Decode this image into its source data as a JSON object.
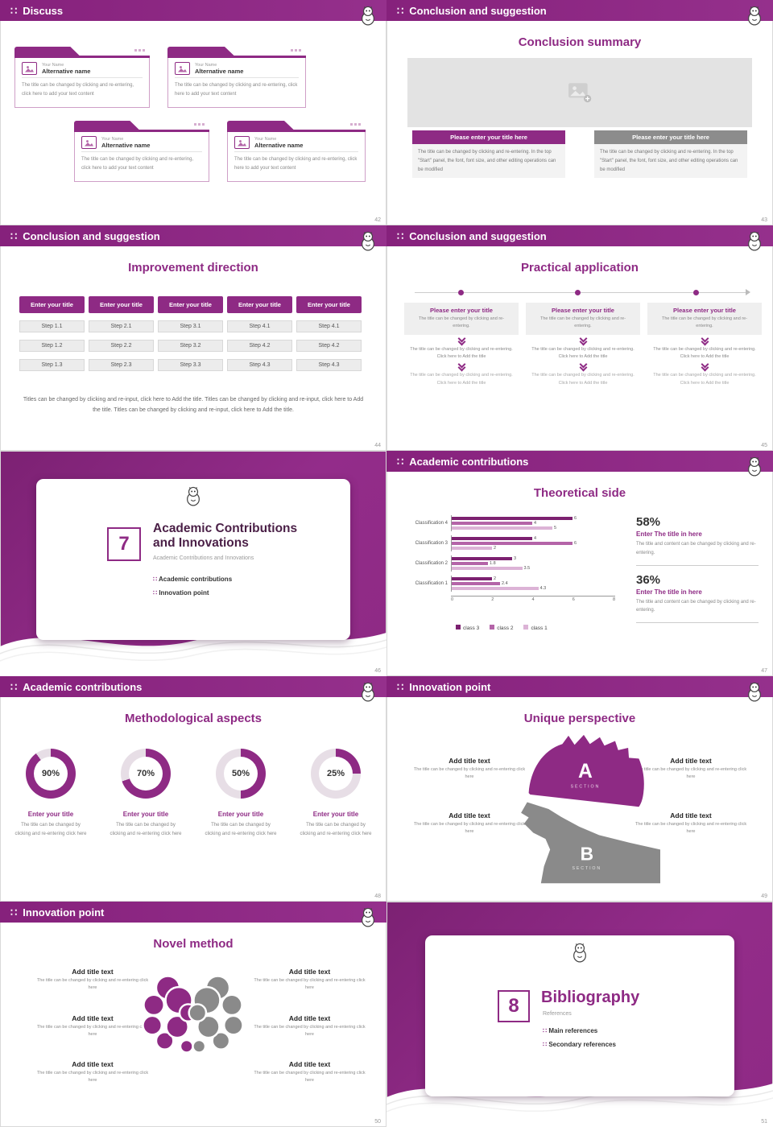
{
  "theme": {
    "purple": "#8e2a84",
    "purple_mid": "#b464a8",
    "purple_light": "#dcb3d6",
    "gray": "#8a8a8a",
    "donut_rest": "#e7dee6"
  },
  "slides": {
    "discuss": {
      "header": "Discuss",
      "page": "42",
      "cards": [
        {
          "name": "Your Name",
          "alt": "Alternative name",
          "desc": "The title can be changed by clicking and re-entering, click here to add your text content"
        },
        {
          "name": "Your Name",
          "alt": "Alternative name",
          "desc": "The title can be changed by clicking and re-entering, click here to add your text content"
        },
        {
          "name": "Your Name",
          "alt": "Alternative name",
          "desc": "The title can be changed by clicking and re-entering, click here to add your text content"
        },
        {
          "name": "Your Name",
          "alt": "Alternative name",
          "desc": "The title can be changed by clicking and re-entering, click here to add your text content"
        }
      ]
    },
    "summary": {
      "header": "Conclusion and suggestion",
      "page": "43",
      "title": "Conclusion summary",
      "cols": [
        {
          "button": "Please enter your title here",
          "desc": "The title can be changed by clicking and re-entering. In the top \"Start\" panel, the font, font size, and other editing operations can be modified"
        },
        {
          "button": "Please enter your title here",
          "desc": "The title can be changed by clicking and re-entering. In the top \"Start\" panel, the font, font size, and other editing operations can be modified"
        }
      ]
    },
    "improvement": {
      "header": "Conclusion and suggestion",
      "page": "44",
      "title": "Improvement direction",
      "columns": [
        {
          "title": "Enter your title",
          "steps": [
            "Step 1.1",
            "Step 1.2",
            "Step 1.3"
          ]
        },
        {
          "title": "Enter your title",
          "steps": [
            "Step 2.1",
            "Step 2.2",
            "Step 2.3"
          ]
        },
        {
          "title": "Enter your title",
          "steps": [
            "Step 3.1",
            "Step 3.2",
            "Step 3.3"
          ]
        },
        {
          "title": "Enter your title",
          "steps": [
            "Step 4.1",
            "Step 4.2",
            "Step 4.3"
          ]
        },
        {
          "title": "Enter your title",
          "steps": [
            "Step 4.1",
            "Step 4.2",
            "Step 4.3"
          ]
        }
      ],
      "footer": "Titles can be changed by clicking and re-input, click here to Add the title. Titles can be changed by clicking and re-input, click here to Add the title. Titles can be changed by clicking and re-input, click here to Add the title."
    },
    "practical": {
      "header": "Conclusion and suggestion",
      "page": "45",
      "title": "Practical application",
      "columns": [
        {
          "title": "Please enter your title",
          "sub": "The title can be changed by clicking and re-entering.",
          "mid": "The title can be changed by clicking and re-entering. Click here to Add the title",
          "bottom": "The title can be changed by clicking and re-entering. Click here to Add the title"
        },
        {
          "title": "Please enter your title",
          "sub": "The title can be changed by clicking and re-entering.",
          "mid": "The title can be changed by clicking and re-entering. Click here to Add the title",
          "bottom": "The title can be changed by clicking and re-entering. Click here to Add the title"
        },
        {
          "title": "Please enter your title",
          "sub": "The title can be changed by clicking and re-entering.",
          "mid": "The title can be changed by clicking and re-entering. Click here to Add the title",
          "bottom": "The title can be changed by clicking and re-entering. Click here to Add the title"
        }
      ]
    },
    "section7": {
      "page": "46",
      "number": "7",
      "title_lines": [
        "Academic Contributions",
        "and Innovations"
      ],
      "subtitle": "Academic Contributions and Innovations",
      "bullets": [
        "Academic contributions",
        "Innovation point"
      ]
    },
    "theoretical": {
      "header": "Academic contributions",
      "page": "47",
      "title": "Theoretical side",
      "stats": [
        {
          "percent": "58%",
          "title": "Enter The title in here",
          "desc": "The title and content can be changed by clicking and re-entering."
        },
        {
          "percent": "36%",
          "title": "Enter The title in here",
          "desc": "The title and content can be changed by clicking and re-entering."
        }
      ]
    },
    "methodological": {
      "header": "Academic contributions",
      "page": "48",
      "title": "Methodological aspects",
      "items": [
        {
          "percent": 90,
          "label": "90%",
          "title": "Enter your title",
          "desc": "The title can be changed by clicking and re-entering click here"
        },
        {
          "percent": 70,
          "label": "70%",
          "title": "Enter your title",
          "desc": "The title can be changed by clicking and re-entering click here"
        },
        {
          "percent": 50,
          "label": "50%",
          "title": "Enter your title",
          "desc": "The title can be changed by clicking and re-entering click here"
        },
        {
          "percent": 25,
          "label": "25%",
          "title": "Enter your title",
          "desc": "The title can be changed by clicking and re-entering click here"
        }
      ]
    },
    "unique": {
      "header": "Innovation point",
      "page": "49",
      "title": "Unique perspective",
      "sections": [
        {
          "letter": "A",
          "label": "SECTION"
        },
        {
          "letter": "B",
          "label": "SECTION"
        }
      ],
      "left": [
        {
          "title": "Add title text",
          "desc": "The title can be changed by clicking and re-entering click here"
        },
        {
          "title": "Add title text",
          "desc": "The title can be changed by clicking and re-entering click here"
        }
      ],
      "right": [
        {
          "title": "Add title text",
          "desc": "The title can be changed by clicking and re-entering click here"
        },
        {
          "title": "Add title text",
          "desc": "The title can be changed by clicking and re-entering click here"
        }
      ]
    },
    "novel": {
      "header": "Innovation point",
      "page": "50",
      "title": "Novel method",
      "left": [
        {
          "title": "Add title text",
          "desc": "The title can be changed by clicking and re-entering click here"
        },
        {
          "title": "Add title text",
          "desc": "The title can be changed by clicking and re-entering click here"
        },
        {
          "title": "Add title text",
          "desc": "The title can be changed by clicking and re-entering click here"
        }
      ],
      "right": [
        {
          "title": "Add title text",
          "desc": "The title can be changed by clicking and re-entering click here"
        },
        {
          "title": "Add title text",
          "desc": "The title can be changed by clicking and re-entering click here"
        },
        {
          "title": "Add title text",
          "desc": "The title can be changed by clicking and re-entering click here"
        }
      ]
    },
    "section8": {
      "page": "51",
      "number": "8",
      "title": "Bibliography",
      "subtitle": "References",
      "bullets": [
        "Main references",
        "Secondary references"
      ]
    }
  },
  "chart_data": {
    "type": "bar",
    "orientation": "horizontal",
    "title": "Theoretical side",
    "xlim": [
      0,
      8
    ],
    "xticks": [
      "0",
      "2",
      "4",
      "6",
      "8"
    ],
    "legend": [
      {
        "name": "class 3",
        "color": "#7c2170"
      },
      {
        "name": "class 2",
        "color": "#b464a8"
      },
      {
        "name": "class 1",
        "color": "#dcb3d6"
      }
    ],
    "groups": [
      {
        "label": "Classification 4",
        "bars": [
          {
            "series": "class 3",
            "value": 6
          },
          {
            "series": "class 2",
            "value": 4
          },
          {
            "series": "class 1",
            "value": 5
          }
        ]
      },
      {
        "label": "Classification 3",
        "bars": [
          {
            "series": "class 3",
            "value": 4
          },
          {
            "series": "class 2",
            "value": 6
          },
          {
            "series": "class 1",
            "value": 2
          }
        ]
      },
      {
        "label": "Classification 2",
        "bars": [
          {
            "series": "class 3",
            "value": 3
          },
          {
            "series": "class 2",
            "value": 1.8
          },
          {
            "series": "class 1",
            "value": 3.5
          }
        ]
      },
      {
        "label": "Classification 1",
        "bars": [
          {
            "series": "class 3",
            "value": 2
          },
          {
            "series": "class 2",
            "value": 2.4
          },
          {
            "series": "class 1",
            "value": 4.3
          }
        ]
      }
    ]
  }
}
